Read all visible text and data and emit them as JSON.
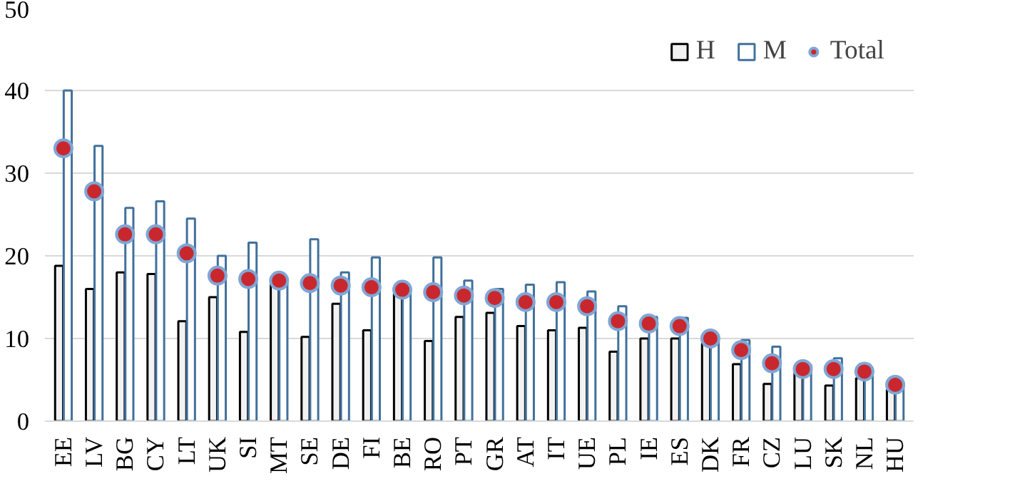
{
  "chart_data": {
    "type": "bar",
    "categories": [
      "EE",
      "LV",
      "BG",
      "CY",
      "LT",
      "UK",
      "SI",
      "MT",
      "SE",
      "DE",
      "FI",
      "BE",
      "RO",
      "PT",
      "GR",
      "AT",
      "IT",
      "UE",
      "PL",
      "IE",
      "ES",
      "DK",
      "FR",
      "CZ",
      "LU",
      "SK",
      "NL",
      "HU"
    ],
    "series": [
      {
        "name": "H",
        "color": "#f2f2f2",
        "values": [
          18.8,
          16,
          18,
          17.8,
          12.1,
          15,
          10.8,
          16.6,
          10.2,
          14.2,
          11,
          15.4,
          9.7,
          12.6,
          13.1,
          11.5,
          11,
          11.3,
          8.4,
          10,
          10,
          9.4,
          6.9,
          4.5,
          5.8,
          4.3,
          5.2,
          3.8
        ]
      },
      {
        "name": "M",
        "color": "#ffffff",
        "values": [
          40,
          33.3,
          25.8,
          26.6,
          24.5,
          20,
          21.6,
          17.2,
          22,
          18,
          19.8,
          16.2,
          19.8,
          17,
          16,
          16.5,
          16.8,
          15.7,
          13.9,
          12.6,
          12.5,
          10.2,
          9.8,
          9,
          6.8,
          7.6,
          6,
          4.5
        ]
      },
      {
        "name": "Total",
        "type": "scatter",
        "color": "#c8282d",
        "values": [
          33,
          27.8,
          22.6,
          22.6,
          20.3,
          17.6,
          17.2,
          17,
          16.7,
          16.4,
          16.2,
          15.9,
          15.6,
          15.2,
          14.9,
          14.4,
          14.4,
          13.9,
          12.1,
          11.8,
          11.5,
          10,
          8.6,
          7,
          6.3,
          6.3,
          6,
          4.4
        ]
      }
    ],
    "ylim": [
      0,
      50
    ],
    "yticks": [
      0,
      10,
      20,
      30,
      40,
      50
    ],
    "grid": "y",
    "legend": "top right",
    "marker": "circle"
  }
}
